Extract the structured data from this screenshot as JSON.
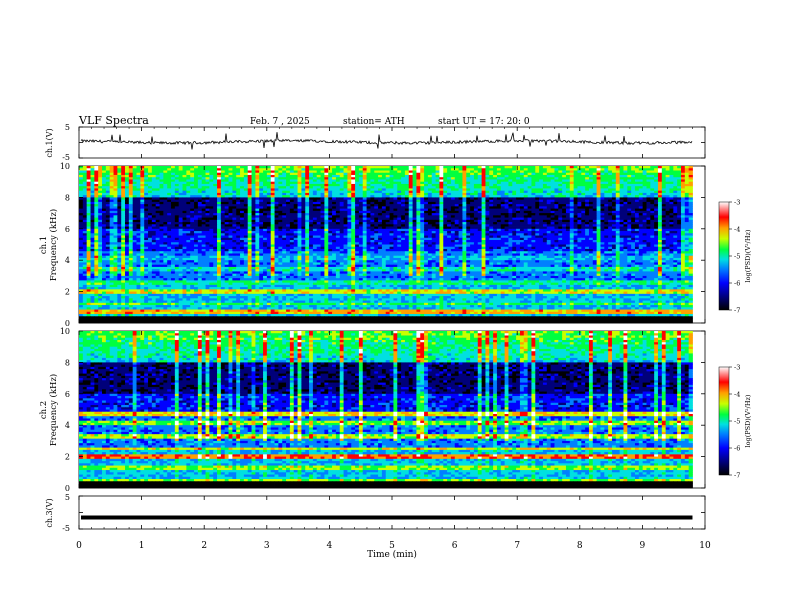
{
  "header": {
    "title": "VLF  Spectra",
    "date": "Feb. 7  , 2025",
    "station": "station= ATH",
    "start_ut": "start  UT  =    17: 20: 0"
  },
  "chart_data": [
    {
      "type": "line",
      "ylabel": "ch.1(V)",
      "ylim": [
        -5,
        5
      ],
      "yticks": [
        "5",
        "-5"
      ],
      "baseline": 0.2,
      "description_of_values": "noisy waveform near 0 V with brief spikes up to about 2 V"
    },
    {
      "type": "heatmap",
      "ylabel": "ch.1\nFrequency  (kHz)",
      "ylim": [
        0,
        10
      ],
      "yticks": [
        "0",
        "2",
        "4",
        "6",
        "8",
        "10"
      ],
      "bands": [
        {
          "kHz": 0.3,
          "level": -4.2
        },
        {
          "kHz": 0.7,
          "level": -4.0
        },
        {
          "kHz": 1.2,
          "level": -4.8
        },
        {
          "kHz": 2.0,
          "level": -4.3
        },
        {
          "kHz": 2.6,
          "level": -5.0
        },
        {
          "kHz": 3.4,
          "level": -5.2
        },
        {
          "kHz": 4.1,
          "level": -5.4
        }
      ],
      "colorbar": {
        "label": "log(PSD)(V²/Hz)",
        "ticks": [
          "-3",
          "-4",
          "-5",
          "-6",
          "-7"
        ]
      }
    },
    {
      "type": "heatmap",
      "ylabel": "ch.2\nFrequency  (kHz)",
      "ylim": [
        0,
        10
      ],
      "yticks": [
        "0",
        "2",
        "4",
        "6",
        "8",
        "10"
      ],
      "bands": [
        {
          "kHz": 0.5,
          "level": -4.5
        },
        {
          "kHz": 1.3,
          "level": -4.6
        },
        {
          "kHz": 2.0,
          "level": -3.7
        },
        {
          "kHz": 2.5,
          "level": -4.3
        },
        {
          "kHz": 3.3,
          "level": -4.4
        },
        {
          "kHz": 4.1,
          "level": -4.6
        },
        {
          "kHz": 4.7,
          "level": -4.2
        }
      ],
      "colorbar": {
        "label": "log(PSD)(V²/Hz)",
        "ticks": [
          "-3",
          "-4",
          "-5",
          "-6",
          "-7"
        ]
      }
    },
    {
      "type": "line",
      "ylabel": "ch.3(V)",
      "ylim": [
        -5,
        5
      ],
      "yticks": [
        "5",
        "-5"
      ],
      "baseline": -1.5,
      "description_of_values": "flat trace near -1.5 V"
    }
  ],
  "x_axis": {
    "label": "Time  (min)",
    "xlim": [
      0,
      10
    ],
    "ticks": [
      "0",
      "1",
      "2",
      "3",
      "4",
      "5",
      "6",
      "7",
      "8",
      "9",
      "10"
    ],
    "data_end": 9.8
  },
  "colors": {
    "scale": [
      "#000000",
      "#00007a",
      "#0000ff",
      "#0080ff",
      "#00e0e0",
      "#00ff40",
      "#c8ff00",
      "#ffa000",
      "#ff0000",
      "#ffffff"
    ]
  }
}
